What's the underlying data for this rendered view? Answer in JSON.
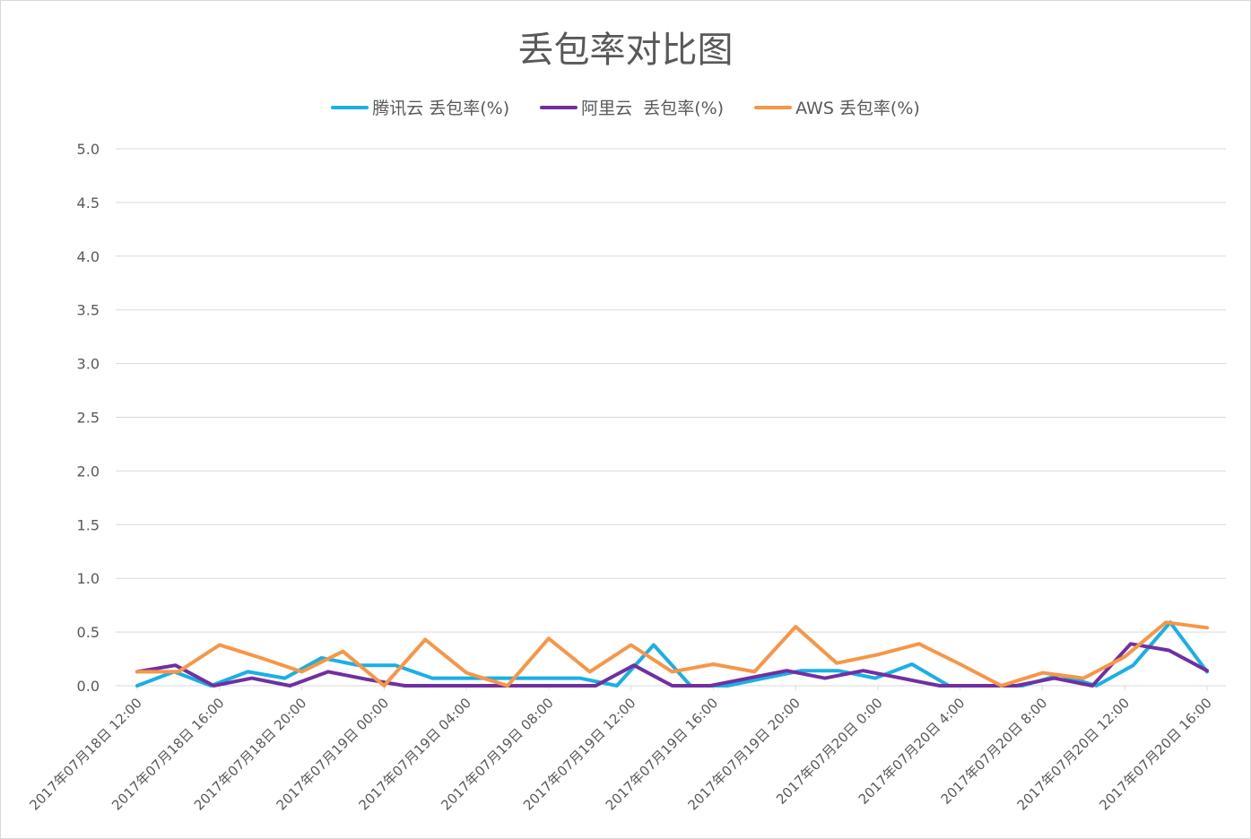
{
  "chart_data": {
    "type": "line",
    "title": "丢包率对比图",
    "xlabel": "",
    "ylabel": "",
    "ylim": [
      0,
      5.0
    ],
    "yticks": [
      "0.0",
      "0.5",
      "1.0",
      "1.5",
      "2.0",
      "2.5",
      "3.0",
      "3.5",
      "4.0",
      "4.5",
      "5.0"
    ],
    "grid": true,
    "legend_position": "top",
    "x_tick_labels": [
      "2017年07月18日 12:00",
      "2017年07月18日 16:00",
      "2017年07月18日 20:00",
      "2017年07月19日 00:00",
      "2017年07月19日 04:00",
      "2017年07月19日 08:00",
      "2017年07月19日 12:00",
      "2017年07月19日 16:00",
      "2017年07月19日 20:00",
      "2017年07月20日 0:00",
      "2017年07月20日 4:00",
      "2017年07月20日 8:00",
      "2017年07月20日 12:00",
      "2017年07月20日 16:00"
    ],
    "series": [
      {
        "name": "腾讯云 丢包率(%)",
        "color": "#1aafe6",
        "values": [
          0.0,
          0.13,
          0.0,
          0.13,
          0.07,
          0.26,
          0.19,
          0.19,
          0.07,
          0.07,
          0.07,
          0.07,
          0.07,
          0.0,
          0.38,
          0.0,
          0.0,
          0.07,
          0.14,
          0.14,
          0.07,
          0.2,
          0.0,
          0.0,
          0.0,
          0.1,
          0.0,
          0.19,
          0.59,
          0.13
        ]
      },
      {
        "name": "阿里云  丢包率(%)",
        "color": "#7030a0",
        "values": [
          0.13,
          0.19,
          0.0,
          0.07,
          0.0,
          0.13,
          0.06,
          0.0,
          0.0,
          0.0,
          0.0,
          0.0,
          0.0,
          0.19,
          0.0,
          0.0,
          0.07,
          0.14,
          0.07,
          0.14,
          0.07,
          0.0,
          0.0,
          0.0,
          0.07,
          0.0,
          0.39,
          0.33,
          0.14
        ]
      },
      {
        "name": "AWS 丢包率(%)",
        "color": "#f79646",
        "values": [
          0.13,
          0.13,
          0.38,
          0.26,
          0.13,
          0.32,
          0.0,
          0.43,
          0.12,
          0.0,
          0.44,
          0.13,
          0.38,
          0.13,
          0.2,
          0.13,
          0.55,
          0.21,
          0.29,
          0.39,
          0.2,
          0.0,
          0.12,
          0.07,
          0.27,
          0.59,
          0.54
        ]
      }
    ]
  }
}
